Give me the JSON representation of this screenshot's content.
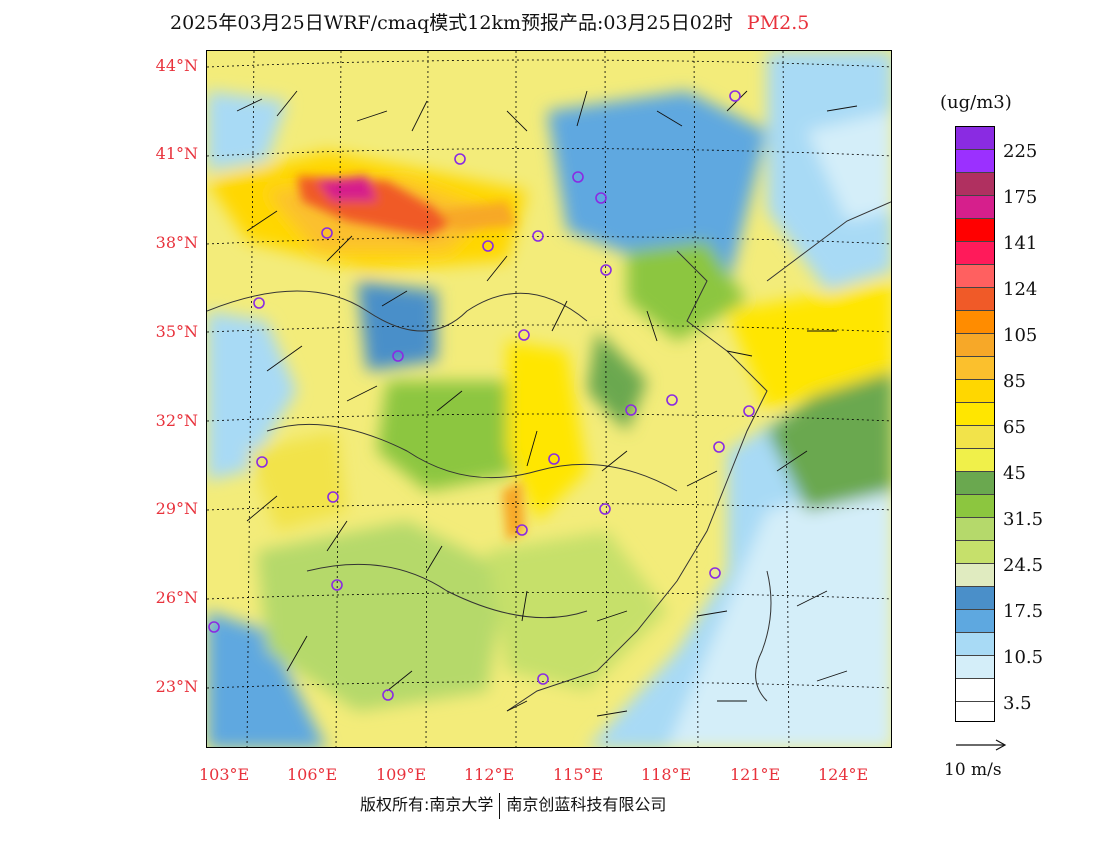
{
  "title": {
    "text": "2025年03月25日WRF/cmaq模式12km预报产品:03月25日02时",
    "product": "PM2.5"
  },
  "map": {
    "lat_labels": [
      "44°N",
      "41°N",
      "38°N",
      "35°N",
      "32°N",
      "29°N",
      "26°N",
      "23°N"
    ],
    "lon_labels": [
      "103°E",
      "106°E",
      "109°E",
      "112°E",
      "115°E",
      "118°E",
      "121°E",
      "124°E"
    ]
  },
  "legend": {
    "unit": "(ug/m3)",
    "colors": [
      "#8a2be2",
      "#9b30ff",
      "#b03060",
      "#d61f8c",
      "#ff0000",
      "#ff1a5a",
      "#ff6060",
      "#f05a28",
      "#ff8c00",
      "#f7a828",
      "#fbc02d",
      "#ffd700",
      "#ffe600",
      "#f2e34a",
      "#f0f04a",
      "#6aa84f",
      "#8cc63f",
      "#b5d96b",
      "#c6e06b",
      "#e0ebc0",
      "#4a8fc9",
      "#5ea8e0",
      "#a8daf5",
      "#d4eef9",
      "#ffffff"
    ],
    "labels": [
      "225",
      "175",
      "141",
      "124",
      "105",
      "85",
      "65",
      "45",
      "31.5",
      "24.5",
      "17.5",
      "10.5",
      "3.5"
    ]
  },
  "wind_key": {
    "label": "10 m/s"
  },
  "footer": {
    "copyright_left": "版权所有:南京大学",
    "copyright_right": "南京创蓝科技有限公司"
  }
}
